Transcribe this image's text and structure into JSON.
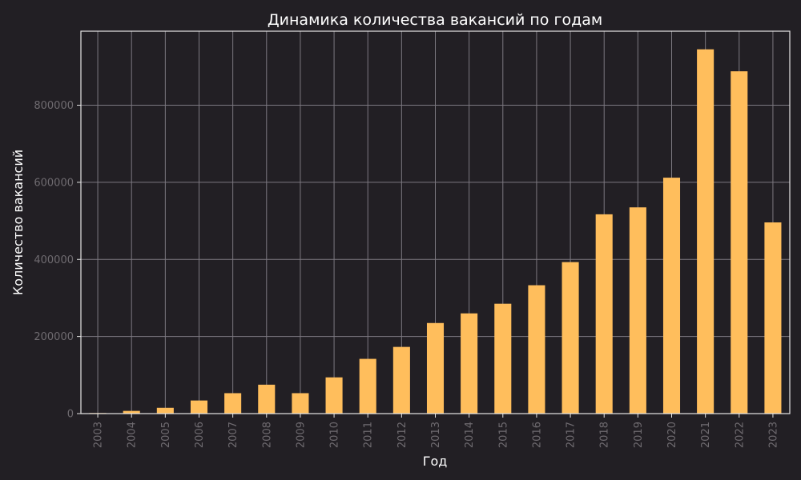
{
  "chart_data": {
    "type": "bar",
    "title": "Динамика количества вакансий по годам",
    "xlabel": "Год",
    "ylabel": "Количество вакансий",
    "categories": [
      "2003",
      "2004",
      "2005",
      "2006",
      "2007",
      "2008",
      "2009",
      "2010",
      "2011",
      "2012",
      "2013",
      "2014",
      "2015",
      "2016",
      "2017",
      "2018",
      "2019",
      "2020",
      "2021",
      "2022",
      "2023"
    ],
    "values": [
      1500,
      7000,
      15000,
      34000,
      53000,
      75000,
      53000,
      94000,
      142000,
      173000,
      235000,
      260000,
      285000,
      333000,
      393000,
      517000,
      535000,
      612000,
      945000,
      888000,
      496000
    ],
    "yticks": [
      0,
      200000,
      400000,
      600000,
      800000
    ],
    "ylim": [
      0,
      992000
    ],
    "grid": true,
    "colors": {
      "background": "#221f24",
      "bar": "#ffbe5c",
      "grid": "#7c7880",
      "axis": "#e6e6e6",
      "tick_text": "#6f6b70",
      "text": "#ffffff"
    }
  }
}
